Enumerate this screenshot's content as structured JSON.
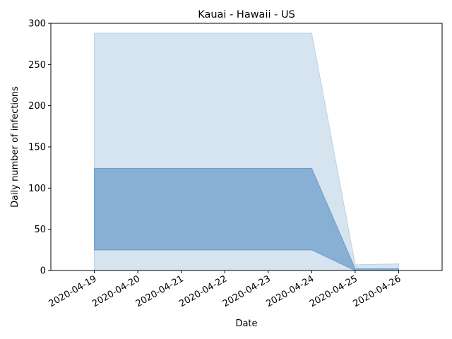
{
  "chart_data": {
    "type": "area",
    "title": "Kauai - Hawaii - US",
    "xlabel": "Date",
    "ylabel": "Daily number of infections",
    "x": [
      "2020-04-19",
      "2020-04-20",
      "2020-04-21",
      "2020-04-22",
      "2020-04-23",
      "2020-04-24",
      "2020-04-25",
      "2020-04-26"
    ],
    "series": [
      {
        "band": "outer",
        "color": "#d6e4f0",
        "edge_color": "#b9d2e6",
        "lower": [
          0,
          0,
          0,
          0,
          0,
          0,
          0,
          0
        ],
        "upper": [
          288,
          288,
          288,
          288,
          288,
          288,
          7,
          8
        ]
      },
      {
        "band": "inner",
        "color": "#87b0d4",
        "edge_color": "#6a9cc8",
        "lower": [
          25,
          25,
          25,
          25,
          25,
          25,
          0,
          0
        ],
        "upper": [
          124,
          124,
          124,
          124,
          124,
          124,
          2,
          2
        ]
      }
    ],
    "xlim": [
      "2020-04-18",
      "2020-04-27"
    ],
    "ylim": [
      0,
      300
    ],
    "yticks": [
      0,
      50,
      100,
      150,
      200,
      250,
      300
    ],
    "grid": false,
    "legend": "none"
  }
}
